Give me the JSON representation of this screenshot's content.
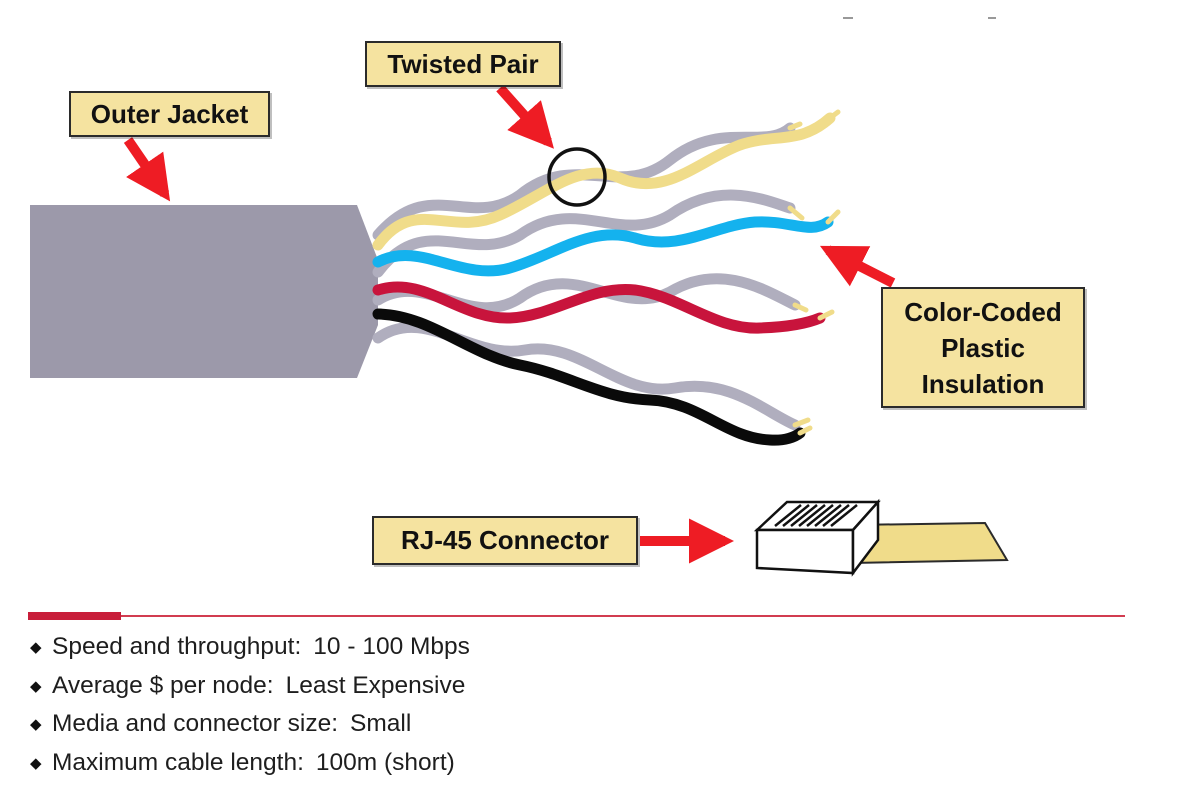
{
  "callouts": {
    "outer_jacket": "Outer Jacket",
    "twisted_pair": "Twisted Pair",
    "color_coded": [
      "Color-Coded",
      "Plastic",
      "Insulation"
    ],
    "rj45": "RJ-45 Connector"
  },
  "specs": [
    {
      "label": "Speed and throughput:",
      "value": "10 - 100 Mbps"
    },
    {
      "label": "Average $ per node:",
      "value": "Least Expensive"
    },
    {
      "label": "Media and connector size:",
      "value": "Small"
    },
    {
      "label": "Maximum cable length:",
      "value": "100m (short)"
    }
  ],
  "colors": {
    "jacket": "#9c99aa",
    "wire_gray": "#b0aebe",
    "wire_yellow": "#f0dc8a",
    "wire_blue": "#14b2ee",
    "wire_red": "#c8143c",
    "wire_black": "#0a0a0a",
    "arrow_red": "#ee1c24",
    "callout_fill": "#f5e3a0",
    "divider": "#d23c50"
  },
  "icons": {
    "bullet": "◆"
  }
}
